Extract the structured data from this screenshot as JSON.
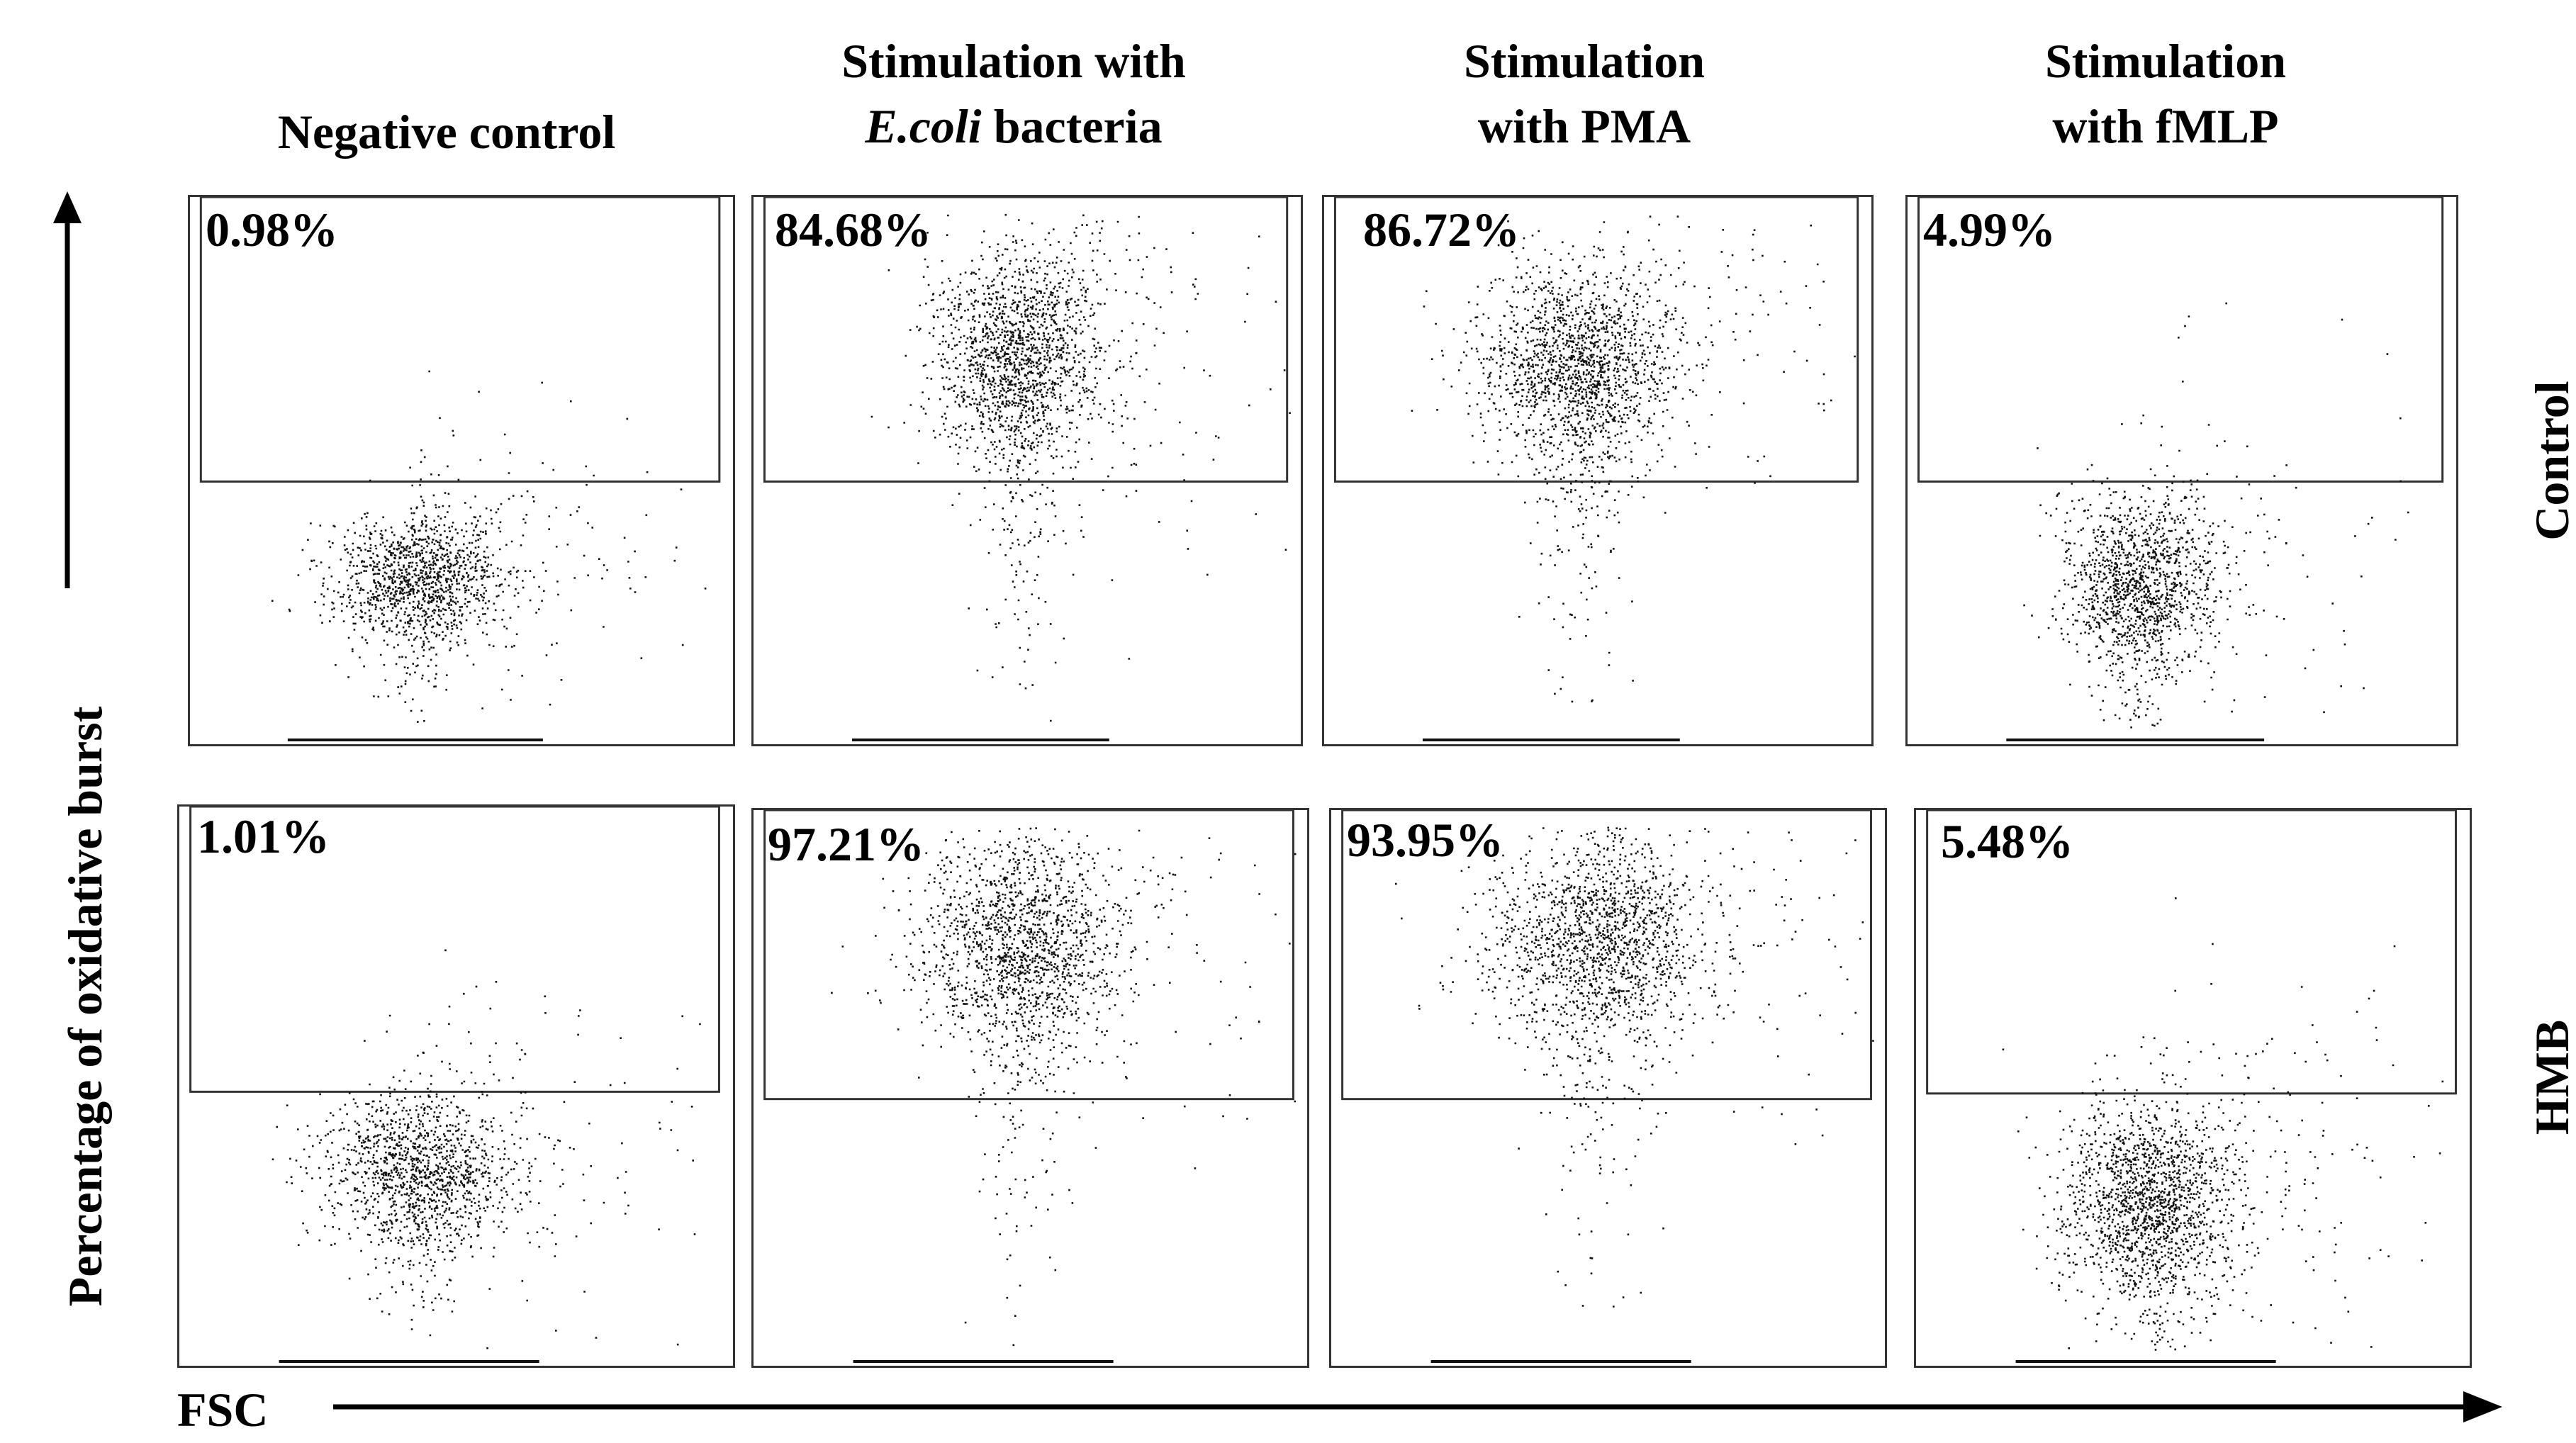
{
  "chart_data": {
    "type": "scatter",
    "axes": {
      "x_label": "FSC",
      "y_label": "Percentage of oxidative burst"
    },
    "columns": [
      {
        "id": "neg",
        "title_lines": [
          "Negative control"
        ]
      },
      {
        "id": "ecoli",
        "title_lines": [
          "Stimulation with"
        ],
        "title_line2_italic": "E.coli",
        "title_line2_rest": " bacteria"
      },
      {
        "id": "pma",
        "title_lines": [
          "Stimulation",
          "with PMA"
        ]
      },
      {
        "id": "fmlp",
        "title_lines": [
          "Stimulation",
          "with fMLP"
        ]
      }
    ],
    "rows": [
      {
        "id": "control",
        "label": "Control"
      },
      {
        "id": "hmb",
        "label": "HMB"
      }
    ],
    "panels": [
      {
        "name": "control-negative-control",
        "row": "Control",
        "column": "Negative control",
        "gated_percent": "0.98%",
        "gate_fraction": 0.52,
        "cluster_center": [
          0.42,
          0.69
        ],
        "cluster_spread": [
          0.08,
          0.06
        ],
        "points": 1400,
        "tail": 0.18
      },
      {
        "name": "control-ecoli",
        "row": "Control",
        "column": "Stimulation with E.coli bacteria",
        "gated_percent": "84.68%",
        "gate_fraction": 0.52,
        "cluster_center": [
          0.48,
          0.28
        ],
        "cluster_spread": [
          0.08,
          0.1
        ],
        "points": 1900,
        "tail": 0.22
      },
      {
        "name": "control-pma",
        "row": "Control",
        "column": "Stimulation with PMA",
        "gated_percent": "86.72%",
        "gate_fraction": 0.52,
        "cluster_center": [
          0.46,
          0.3
        ],
        "cluster_spread": [
          0.09,
          0.09
        ],
        "points": 1900,
        "tail": 0.22
      },
      {
        "name": "control-fmlp",
        "row": "Control",
        "column": "Stimulation with fMLP",
        "gated_percent": "4.99%",
        "gate_fraction": 0.52,
        "cluster_center": [
          0.42,
          0.7
        ],
        "cluster_spread": [
          0.07,
          0.08
        ],
        "points": 1500,
        "tail": 0.18
      },
      {
        "name": "hmb-negative-control",
        "row": "HMB",
        "column": "Negative control",
        "gated_percent": "1.01%",
        "gate_fraction": 0.51,
        "cluster_center": [
          0.43,
          0.65
        ],
        "cluster_spread": [
          0.09,
          0.07
        ],
        "points": 1500,
        "tail": 0.18
      },
      {
        "name": "hmb-ecoli",
        "row": "HMB",
        "column": "Stimulation with E.coli bacteria",
        "gated_percent": "97.21%",
        "gate_fraction": 0.52,
        "cluster_center": [
          0.48,
          0.24
        ],
        "cluster_spread": [
          0.09,
          0.1
        ],
        "points": 1800,
        "tail": 0.22
      },
      {
        "name": "hmb-pma",
        "row": "HMB",
        "column": "Stimulation with PMA",
        "gated_percent": "93.95%",
        "gate_fraction": 0.52,
        "cluster_center": [
          0.48,
          0.23
        ],
        "cluster_spread": [
          0.1,
          0.09
        ],
        "points": 1800,
        "tail": 0.22
      },
      {
        "name": "hmb-fmlp",
        "row": "HMB",
        "column": "Stimulation with fMLP",
        "gated_percent": "5.48%",
        "gate_fraction": 0.51,
        "cluster_center": [
          0.42,
          0.7
        ],
        "cluster_spread": [
          0.08,
          0.09
        ],
        "points": 1900,
        "tail": 0.2
      }
    ]
  }
}
